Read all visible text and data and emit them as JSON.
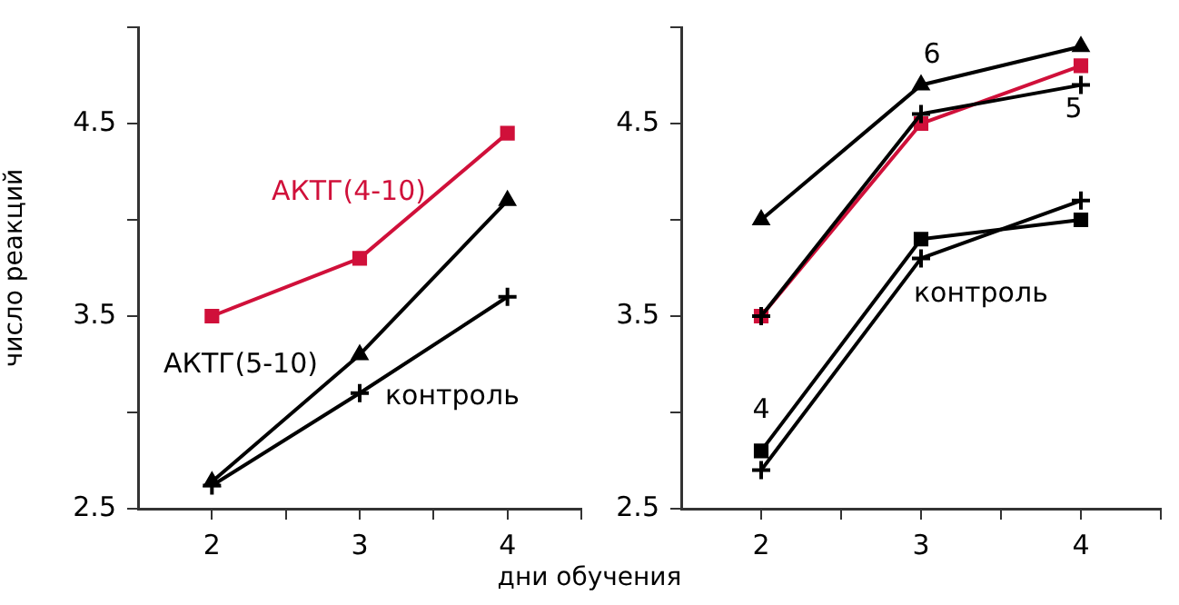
{
  "chart_data": [
    {
      "type": "line",
      "ylabel": "число реакций",
      "xlabel": "дни обучения",
      "x": [
        2,
        3,
        4
      ],
      "xlim": [
        1.5,
        4.5
      ],
      "xticks": [
        2,
        {
          "value": 2.5,
          "label": null
        },
        3,
        {
          "value": 3.5,
          "label": null
        },
        4,
        {
          "value": 4.5,
          "label": null
        }
      ],
      "ylim": [
        2.5,
        5.0
      ],
      "yticks": [
        2.5,
        {
          "value": 3,
          "label": null
        },
        3.5,
        {
          "value": 4,
          "label": null
        },
        4.5,
        {
          "value": 5,
          "label": null
        }
      ],
      "grid": false,
      "line_style": "solid",
      "series": [
        {
          "name": "АКТГ(4-10)",
          "color": "#d0103a",
          "marker": "square",
          "values": [
            3.5,
            3.8,
            4.45
          ]
        },
        {
          "name": "АКТГ(5-10)",
          "color": "#000000",
          "marker": "triangle",
          "values": [
            2.64,
            3.3,
            4.1
          ]
        },
        {
          "name": "контроль",
          "color": "#000000",
          "marker": "cross",
          "values": [
            2.62,
            3.1,
            3.6
          ]
        }
      ]
    },
    {
      "type": "line",
      "x": [
        2,
        3,
        4
      ],
      "xlim": [
        1.5,
        4.5
      ],
      "xticks": [
        2,
        {
          "value": 2.5,
          "label": null
        },
        3,
        {
          "value": 3.5,
          "label": null
        },
        4,
        {
          "value": 4.5,
          "label": null
        }
      ],
      "ylim": [
        2.5,
        5.0
      ],
      "yticks": [
        2.5,
        {
          "value": 3,
          "label": null
        },
        3.5,
        {
          "value": 4,
          "label": null
        },
        4.5,
        {
          "value": 5,
          "label": null
        }
      ],
      "grid": false,
      "line_style": "solid",
      "series": [
        {
          "name": "6",
          "color": "#000000",
          "marker": "triangle",
          "values": [
            4.0,
            4.7,
            4.9
          ]
        },
        {
          "name": "5",
          "color": "#000000",
          "marker": "cross",
          "values": [
            3.5,
            4.55,
            4.7
          ]
        },
        {
          "color": "#d0103a",
          "marker": "square",
          "values": [
            3.5,
            4.5,
            4.8
          ]
        },
        {
          "name": "4",
          "color": "#000000",
          "marker": "square",
          "values": [
            2.8,
            3.9,
            4.0
          ]
        },
        {
          "name": "контроль",
          "color": "#000000",
          "marker": "cross",
          "values": [
            2.7,
            3.8,
            4.1
          ]
        }
      ]
    }
  ]
}
